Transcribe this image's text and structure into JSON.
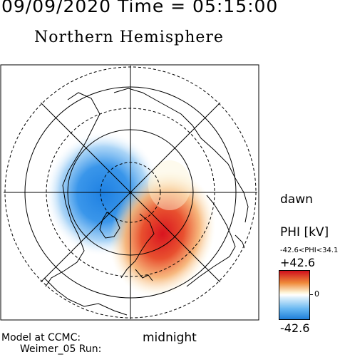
{
  "header": {
    "date_time": "09/09/2020 Time = 05:15:00",
    "title": "Northern Hemisphere"
  },
  "map": {
    "dawn_label": "dawn",
    "midnight_label": "midnight",
    "positive_color": "#d9141f",
    "negative_color": "#1e80e2"
  },
  "colorbar": {
    "title": "PHI [kV]",
    "range_text": "-42.6<PHI<34.1",
    "max_label": "+42.6",
    "zero_label": "0",
    "min_label": "-42.6"
  },
  "footer": {
    "model": "Model at CCMC:",
    "run": "Weimer_05 Run:"
  }
}
